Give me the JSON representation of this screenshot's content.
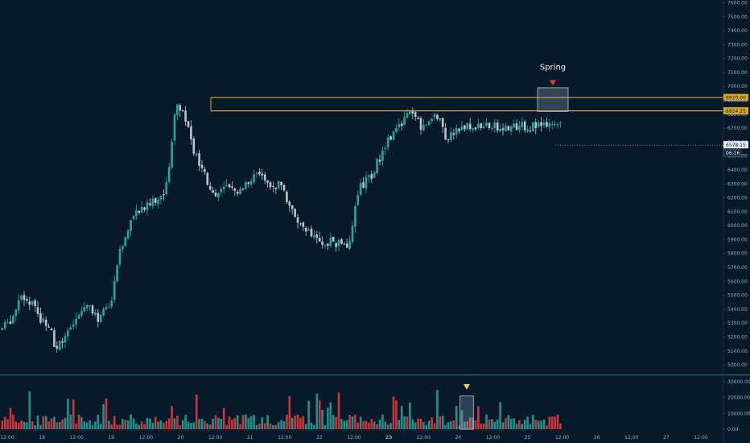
{
  "colors": {
    "background": "#071a2c",
    "up": "#26a69a",
    "down": "#c0c4c8",
    "volume_up": "#26a69a",
    "volume_down": "#ef3b3b",
    "level_line": "#d9a520",
    "spring_marker": "#e53935",
    "volume_marker": "#f2d24b",
    "axis_text": "#9aa7b3",
    "separator": "#3c6f8a"
  },
  "chart_data": [
    {
      "type": "candlestick",
      "name": "price",
      "ylim": [
        4960,
        7620
      ],
      "y_ticks": [
        5000,
        5100,
        5200,
        5300,
        5400,
        5500,
        5600,
        5700,
        5800,
        5900,
        6000,
        6100,
        6200,
        6300,
        6400,
        6500,
        6600,
        6700,
        6800,
        6900,
        7000,
        7100,
        7200,
        7300,
        7400,
        7500,
        7600
      ],
      "y_tick_labels": [
        "5000.00",
        "5100.00",
        "5200.00",
        "5300.00",
        "5400.00",
        "5500.00",
        "5600.00",
        "5700.00",
        "5800.00",
        "5900.00",
        "6000.00",
        "6100.00",
        "6200.00",
        "6300.00",
        "6400.00",
        "6500.00",
        "6600.00",
        "6700.00",
        "6800.00",
        "6900.00",
        "7000.00",
        "7100.00",
        "7200.00",
        "7300.00",
        "7400.00",
        "7500.00",
        "7600.00"
      ],
      "x_ticks": [
        "12:00",
        "18",
        "12:00",
        "19",
        "12:00",
        "20",
        "12:00",
        "21",
        "12:00",
        "22",
        "12:00",
        "23",
        "12:00",
        "24",
        "12:00",
        "25",
        "12:00",
        "26",
        "12:00",
        "27",
        "12:00"
      ],
      "bar_count": 205,
      "anchors": [
        [
          0,
          5260
        ],
        [
          8,
          5350
        ],
        [
          14,
          5480
        ],
        [
          22,
          5450
        ],
        [
          28,
          5330
        ],
        [
          34,
          5300
        ],
        [
          39,
          5120
        ],
        [
          46,
          5180
        ],
        [
          56,
          5380
        ],
        [
          64,
          5440
        ],
        [
          70,
          5310
        ],
        [
          80,
          5460
        ],
        [
          86,
          5800
        ],
        [
          98,
          6120
        ],
        [
          108,
          6150
        ],
        [
          116,
          6220
        ],
        [
          121,
          6300
        ],
        [
          127,
          6920
        ],
        [
          134,
          6780
        ],
        [
          140,
          6530
        ],
        [
          148,
          6350
        ],
        [
          155,
          6210
        ],
        [
          164,
          6280
        ],
        [
          172,
          6220
        ],
        [
          180,
          6330
        ],
        [
          188,
          6380
        ],
        [
          195,
          6280
        ],
        [
          204,
          6290
        ],
        [
          211,
          6120
        ],
        [
          222,
          5950
        ],
        [
          233,
          5900
        ],
        [
          246,
          5870
        ],
        [
          252,
          5820
        ],
        [
          256,
          6020
        ],
        [
          262,
          6280
        ],
        [
          270,
          6360
        ],
        [
          282,
          6620
        ],
        [
          290,
          6730
        ],
        [
          298,
          6810
        ],
        [
          307,
          6710
        ],
        [
          318,
          6790
        ],
        [
          324,
          6640
        ],
        [
          333,
          6680
        ],
        [
          340,
          6710
        ]
      ],
      "points_per_index": 2,
      "series": [
        {
          "name": "",
          "ohlc_note": "",
          "values": []
        }
      ],
      "annotations": [
        {
          "label": "Spring",
          "price_low": 6820,
          "price_high": 6990
        }
      ],
      "horizontal_levels": [
        {
          "price": 6920.0,
          "label": "6920.00"
        },
        {
          "price": 6824.25,
          "label": "6824.25"
        }
      ],
      "last_price": {
        "label": "6578.15",
        "timer": "06:16",
        "price": 6578.15
      }
    },
    {
      "type": "bar",
      "name": "volume",
      "ylim": [
        0,
        32000
      ],
      "y_ticks": [
        0,
        10000,
        20000,
        30000
      ],
      "y_tick_labels": [
        "0.00",
        "10000.00",
        "20000.00",
        "30000.00"
      ],
      "highlight_bar": {
        "from_index": 168,
        "to_index": 172
      }
    }
  ],
  "labels": {
    "spring": "Spring",
    "level_high": "6920.00",
    "level_low": "6824.25",
    "last_price": "6578.15",
    "countdown": "06:16"
  }
}
